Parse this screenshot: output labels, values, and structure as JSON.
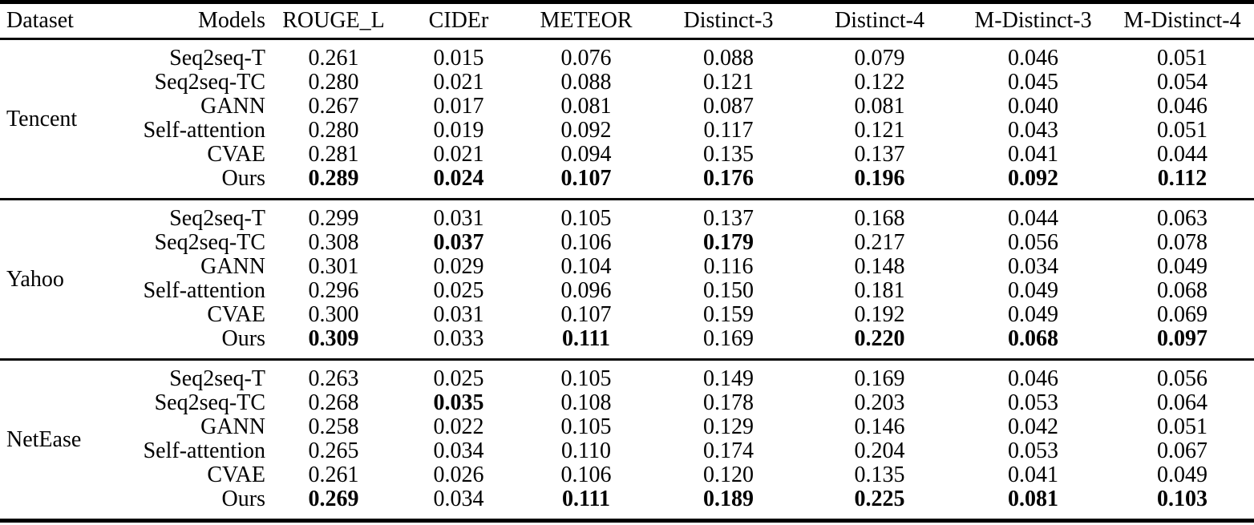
{
  "table": {
    "columns": [
      "Dataset",
      "Models",
      "ROUGE_L",
      "CIDEr",
      "METEOR",
      "Distinct-3",
      "Distinct-4",
      "M-Distinct-3",
      "M-Distinct-4"
    ],
    "sections": [
      {
        "dataset": "Tencent",
        "rows": [
          {
            "model": "Seq2seq-T",
            "values": [
              "0.261",
              "0.015",
              "0.076",
              "0.088",
              "0.079",
              "0.046",
              "0.051"
            ],
            "bold": [
              0,
              0,
              0,
              0,
              0,
              0,
              0
            ]
          },
          {
            "model": "Seq2seq-TC",
            "values": [
              "0.280",
              "0.021",
              "0.088",
              "0.121",
              "0.122",
              "0.045",
              "0.054"
            ],
            "bold": [
              0,
              0,
              0,
              0,
              0,
              0,
              0
            ]
          },
          {
            "model": "GANN",
            "values": [
              "0.267",
              "0.017",
              "0.081",
              "0.087",
              "0.081",
              "0.040",
              "0.046"
            ],
            "bold": [
              0,
              0,
              0,
              0,
              0,
              0,
              0
            ]
          },
          {
            "model": "Self-attention",
            "values": [
              "0.280",
              "0.019",
              "0.092",
              "0.117",
              "0.121",
              "0.043",
              "0.051"
            ],
            "bold": [
              0,
              0,
              0,
              0,
              0,
              0,
              0
            ]
          },
          {
            "model": "CVAE",
            "values": [
              "0.281",
              "0.021",
              "0.094",
              "0.135",
              "0.137",
              "0.041",
              "0.044"
            ],
            "bold": [
              0,
              0,
              0,
              0,
              0,
              0,
              0
            ]
          },
          {
            "model": "Ours",
            "values": [
              "0.289",
              "0.024",
              "0.107",
              "0.176",
              "0.196",
              "0.092",
              "0.112"
            ],
            "bold": [
              1,
              1,
              1,
              1,
              1,
              1,
              1
            ]
          }
        ]
      },
      {
        "dataset": "Yahoo",
        "rows": [
          {
            "model": "Seq2seq-T",
            "values": [
              "0.299",
              "0.031",
              "0.105",
              "0.137",
              "0.168",
              "0.044",
              "0.063"
            ],
            "bold": [
              0,
              0,
              0,
              0,
              0,
              0,
              0
            ]
          },
          {
            "model": "Seq2seq-TC",
            "values": [
              "0.308",
              "0.037",
              "0.106",
              "0.179",
              "0.217",
              "0.056",
              "0.078"
            ],
            "bold": [
              0,
              1,
              0,
              1,
              0,
              0,
              0
            ]
          },
          {
            "model": "GANN",
            "values": [
              "0.301",
              "0.029",
              "0.104",
              "0.116",
              "0.148",
              "0.034",
              "0.049"
            ],
            "bold": [
              0,
              0,
              0,
              0,
              0,
              0,
              0
            ]
          },
          {
            "model": "Self-attention",
            "values": [
              "0.296",
              "0.025",
              "0.096",
              "0.150",
              "0.181",
              "0.049",
              "0.068"
            ],
            "bold": [
              0,
              0,
              0,
              0,
              0,
              0,
              0
            ]
          },
          {
            "model": "CVAE",
            "values": [
              "0.300",
              "0.031",
              "0.107",
              "0.159",
              "0.192",
              "0.049",
              "0.069"
            ],
            "bold": [
              0,
              0,
              0,
              0,
              0,
              0,
              0
            ]
          },
          {
            "model": "Ours",
            "values": [
              "0.309",
              "0.033",
              "0.111",
              "0.169",
              "0.220",
              "0.068",
              "0.097"
            ],
            "bold": [
              1,
              0,
              1,
              0,
              1,
              1,
              1
            ]
          }
        ]
      },
      {
        "dataset": "NetEase",
        "rows": [
          {
            "model": "Seq2seq-T",
            "values": [
              "0.263",
              "0.025",
              "0.105",
              "0.149",
              "0.169",
              "0.046",
              "0.056"
            ],
            "bold": [
              0,
              0,
              0,
              0,
              0,
              0,
              0
            ]
          },
          {
            "model": "Seq2seq-TC",
            "values": [
              "0.268",
              "0.035",
              "0.108",
              "0.178",
              "0.203",
              "0.053",
              "0.064"
            ],
            "bold": [
              0,
              1,
              0,
              0,
              0,
              0,
              0
            ]
          },
          {
            "model": "GANN",
            "values": [
              "0.258",
              "0.022",
              "0.105",
              "0.129",
              "0.146",
              "0.042",
              "0.051"
            ],
            "bold": [
              0,
              0,
              0,
              0,
              0,
              0,
              0
            ]
          },
          {
            "model": "Self-attention",
            "values": [
              "0.265",
              "0.034",
              "0.110",
              "0.174",
              "0.204",
              "0.053",
              "0.067"
            ],
            "bold": [
              0,
              0,
              0,
              0,
              0,
              0,
              0
            ]
          },
          {
            "model": "CVAE",
            "values": [
              "0.261",
              "0.026",
              "0.106",
              "0.120",
              "0.135",
              "0.041",
              "0.049"
            ],
            "bold": [
              0,
              0,
              0,
              0,
              0,
              0,
              0
            ]
          },
          {
            "model": "Ours",
            "values": [
              "0.269",
              "0.034",
              "0.111",
              "0.189",
              "0.225",
              "0.081",
              "0.103"
            ],
            "bold": [
              1,
              0,
              1,
              1,
              1,
              1,
              1
            ]
          }
        ]
      }
    ]
  }
}
